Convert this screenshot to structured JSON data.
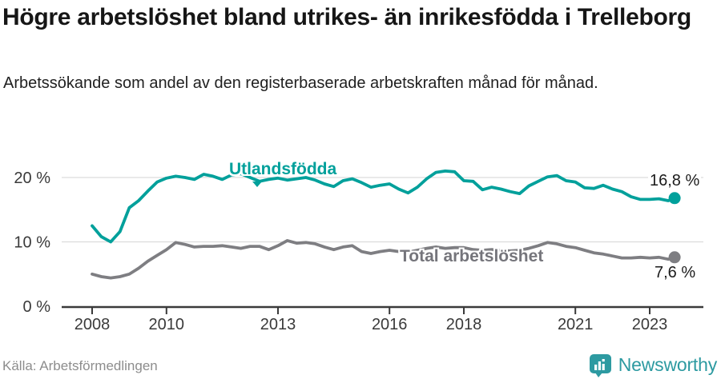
{
  "header": {
    "title": "Högre arbetslöshet bland utrikes- än inrikesfödda i Trelleborg",
    "subtitle": "Arbetssökande som andel av den registerbaserade arbetskraften månad för månad."
  },
  "footer": {
    "source": "Källa: Arbetsförmedlingen",
    "brand": "Newsworthy"
  },
  "colors": {
    "foreign_born_line": "#00a09b",
    "total_line": "#7e7e82",
    "brand_teal": "#2d9aa1",
    "axis_text": "#3a3a3a",
    "gridline": "#dcdcdc",
    "value_label": "#1b1b1b"
  },
  "chart_data": {
    "type": "line",
    "title": "Högre arbetslöshet bland utrikes- än inrikesfödda i Trelleborg",
    "subtitle": "Arbetssökande som andel av den registerbaserade arbetskraften månad för månad.",
    "unit": "%",
    "xlabel": "",
    "ylabel": "",
    "xlim": [
      2007.2,
      2024.4
    ],
    "ylim": [
      0,
      22.4
    ],
    "grid": "horizontal",
    "legend": "inline-labels",
    "x_ticks": [
      2008,
      2010,
      2013,
      2016,
      2018,
      2021,
      2023
    ],
    "y_ticks": [
      {
        "value": 0,
        "label": "0 %"
      },
      {
        "value": 10,
        "label": "10 %"
      },
      {
        "value": 20,
        "label": "20 %"
      }
    ],
    "x": [
      2008.0,
      2008.25,
      2008.5,
      2008.75,
      2009.0,
      2009.25,
      2009.5,
      2009.75,
      2010.0,
      2010.25,
      2010.5,
      2010.75,
      2011.0,
      2011.25,
      2011.5,
      2011.75,
      2012.0,
      2012.25,
      2012.5,
      2012.75,
      2013.0,
      2013.25,
      2013.5,
      2013.75,
      2014.0,
      2014.25,
      2014.5,
      2014.75,
      2015.0,
      2015.25,
      2015.5,
      2015.75,
      2016.0,
      2016.25,
      2016.5,
      2016.75,
      2017.0,
      2017.25,
      2017.5,
      2017.75,
      2018.0,
      2018.25,
      2018.5,
      2018.75,
      2019.0,
      2019.25,
      2019.5,
      2019.75,
      2020.0,
      2020.25,
      2020.5,
      2020.75,
      2021.0,
      2021.25,
      2021.5,
      2021.75,
      2022.0,
      2022.25,
      2022.5,
      2022.75,
      2023.0,
      2023.25,
      2023.5,
      2023.67
    ],
    "series": [
      {
        "name": "Utlandsfödda",
        "color": "#00a09b",
        "end_label": "16,8 %",
        "end_value": 16.8,
        "values": [
          12.5,
          10.8,
          10.0,
          11.6,
          15.3,
          16.4,
          17.9,
          19.3,
          19.9,
          20.2,
          20.0,
          19.7,
          20.5,
          20.2,
          19.7,
          20.4,
          20.6,
          20.0,
          19.4,
          19.7,
          19.9,
          19.6,
          19.8,
          20.0,
          19.6,
          19.0,
          18.6,
          19.5,
          19.8,
          19.2,
          18.5,
          18.8,
          19.0,
          18.2,
          17.6,
          18.5,
          19.8,
          20.8,
          21.0,
          20.9,
          19.5,
          19.4,
          18.1,
          18.5,
          18.2,
          17.8,
          17.5,
          18.7,
          19.4,
          20.1,
          20.3,
          19.5,
          19.3,
          18.4,
          18.3,
          18.8,
          18.2,
          17.8,
          17.0,
          16.6,
          16.6,
          16.7,
          16.4,
          16.8
        ]
      },
      {
        "name": "Total arbetslöshet",
        "color": "#7e7e82",
        "end_label": "7,6 %",
        "end_value": 7.6,
        "values": [
          5.0,
          4.6,
          4.4,
          4.6,
          5.0,
          5.9,
          7.0,
          7.9,
          8.8,
          9.9,
          9.6,
          9.2,
          9.3,
          9.3,
          9.4,
          9.2,
          9.0,
          9.3,
          9.3,
          8.8,
          9.4,
          10.2,
          9.8,
          9.9,
          9.7,
          9.2,
          8.8,
          9.2,
          9.4,
          8.5,
          8.2,
          8.5,
          8.7,
          8.5,
          8.4,
          8.7,
          9.0,
          9.2,
          9.0,
          9.1,
          9.1,
          8.8,
          8.7,
          8.8,
          8.7,
          8.6,
          8.7,
          9.0,
          9.4,
          9.9,
          9.7,
          9.3,
          9.1,
          8.7,
          8.3,
          8.1,
          7.8,
          7.5,
          7.5,
          7.6,
          7.5,
          7.6,
          7.3,
          7.6
        ]
      }
    ]
  }
}
